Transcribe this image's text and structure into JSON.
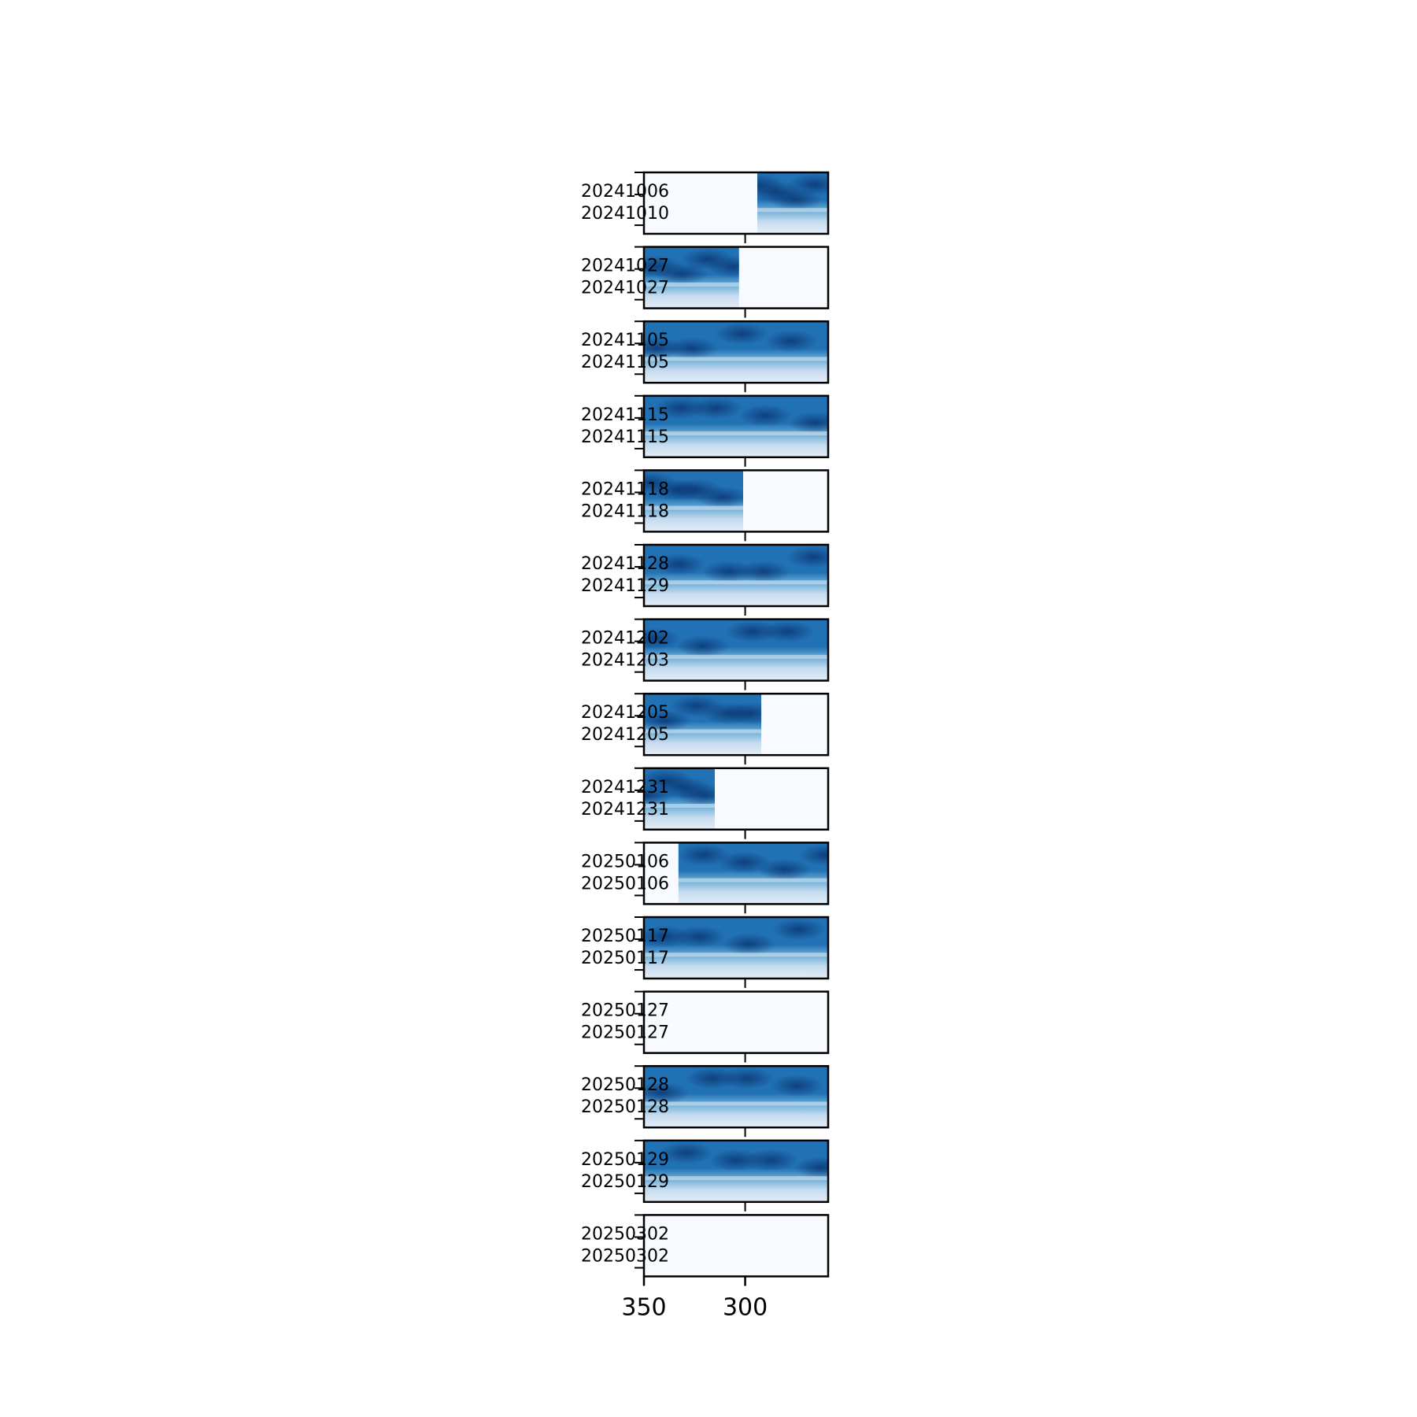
{
  "chart_data": {
    "type": "heatmap",
    "title": "",
    "xlabel": "",
    "ylabel": "",
    "colormap": "Blues",
    "x_axis": {
      "ticks": [
        350,
        300
      ],
      "tick_labels": [
        "350",
        "300"
      ],
      "range": [
        350,
        259
      ],
      "direction": "descending"
    },
    "panels": [
      {
        "start_date": "20241006",
        "end_date": "20241010",
        "x_start": 294,
        "x_end": 259,
        "has_data": true
      },
      {
        "start_date": "20241027",
        "end_date": "20241027",
        "x_start": 350,
        "x_end": 303,
        "has_data": true
      },
      {
        "start_date": "20241105",
        "end_date": "20241105",
        "x_start": 350,
        "x_end": 259,
        "has_data": true
      },
      {
        "start_date": "20241115",
        "end_date": "20241115",
        "x_start": 350,
        "x_end": 259,
        "has_data": true
      },
      {
        "start_date": "20241118",
        "end_date": "20241118",
        "x_start": 350,
        "x_end": 301,
        "has_data": true
      },
      {
        "start_date": "20241128",
        "end_date": "20241129",
        "x_start": 350,
        "x_end": 259,
        "has_data": true
      },
      {
        "start_date": "20241202",
        "end_date": "20241203",
        "x_start": 350,
        "x_end": 259,
        "has_data": true
      },
      {
        "start_date": "20241205",
        "end_date": "20241205",
        "x_start": 350,
        "x_end": 292,
        "has_data": true
      },
      {
        "start_date": "20241231",
        "end_date": "20241231",
        "x_start": 350,
        "x_end": 315,
        "has_data": true
      },
      {
        "start_date": "20250106",
        "end_date": "20250106",
        "x_start": 333,
        "x_end": 259,
        "has_data": true
      },
      {
        "start_date": "20250117",
        "end_date": "20250117",
        "x_start": 350,
        "x_end": 259,
        "has_data": true
      },
      {
        "start_date": "20250127",
        "end_date": "20250127",
        "x_start": null,
        "x_end": null,
        "has_data": false
      },
      {
        "start_date": "20250128",
        "end_date": "20250128",
        "x_start": 350,
        "x_end": 259,
        "has_data": true
      },
      {
        "start_date": "20250129",
        "end_date": "20250129",
        "x_start": 350,
        "x_end": 259,
        "has_data": true
      },
      {
        "start_date": "20250302",
        "end_date": "20250302",
        "x_start": null,
        "x_end": null,
        "has_data": false
      }
    ],
    "colors": {
      "empty": "#f7fbff",
      "light": "#c6dbef",
      "mid": "#6baed6",
      "dark": "#2171b5",
      "darkest": "#08306b",
      "frame": "#000000"
    }
  }
}
